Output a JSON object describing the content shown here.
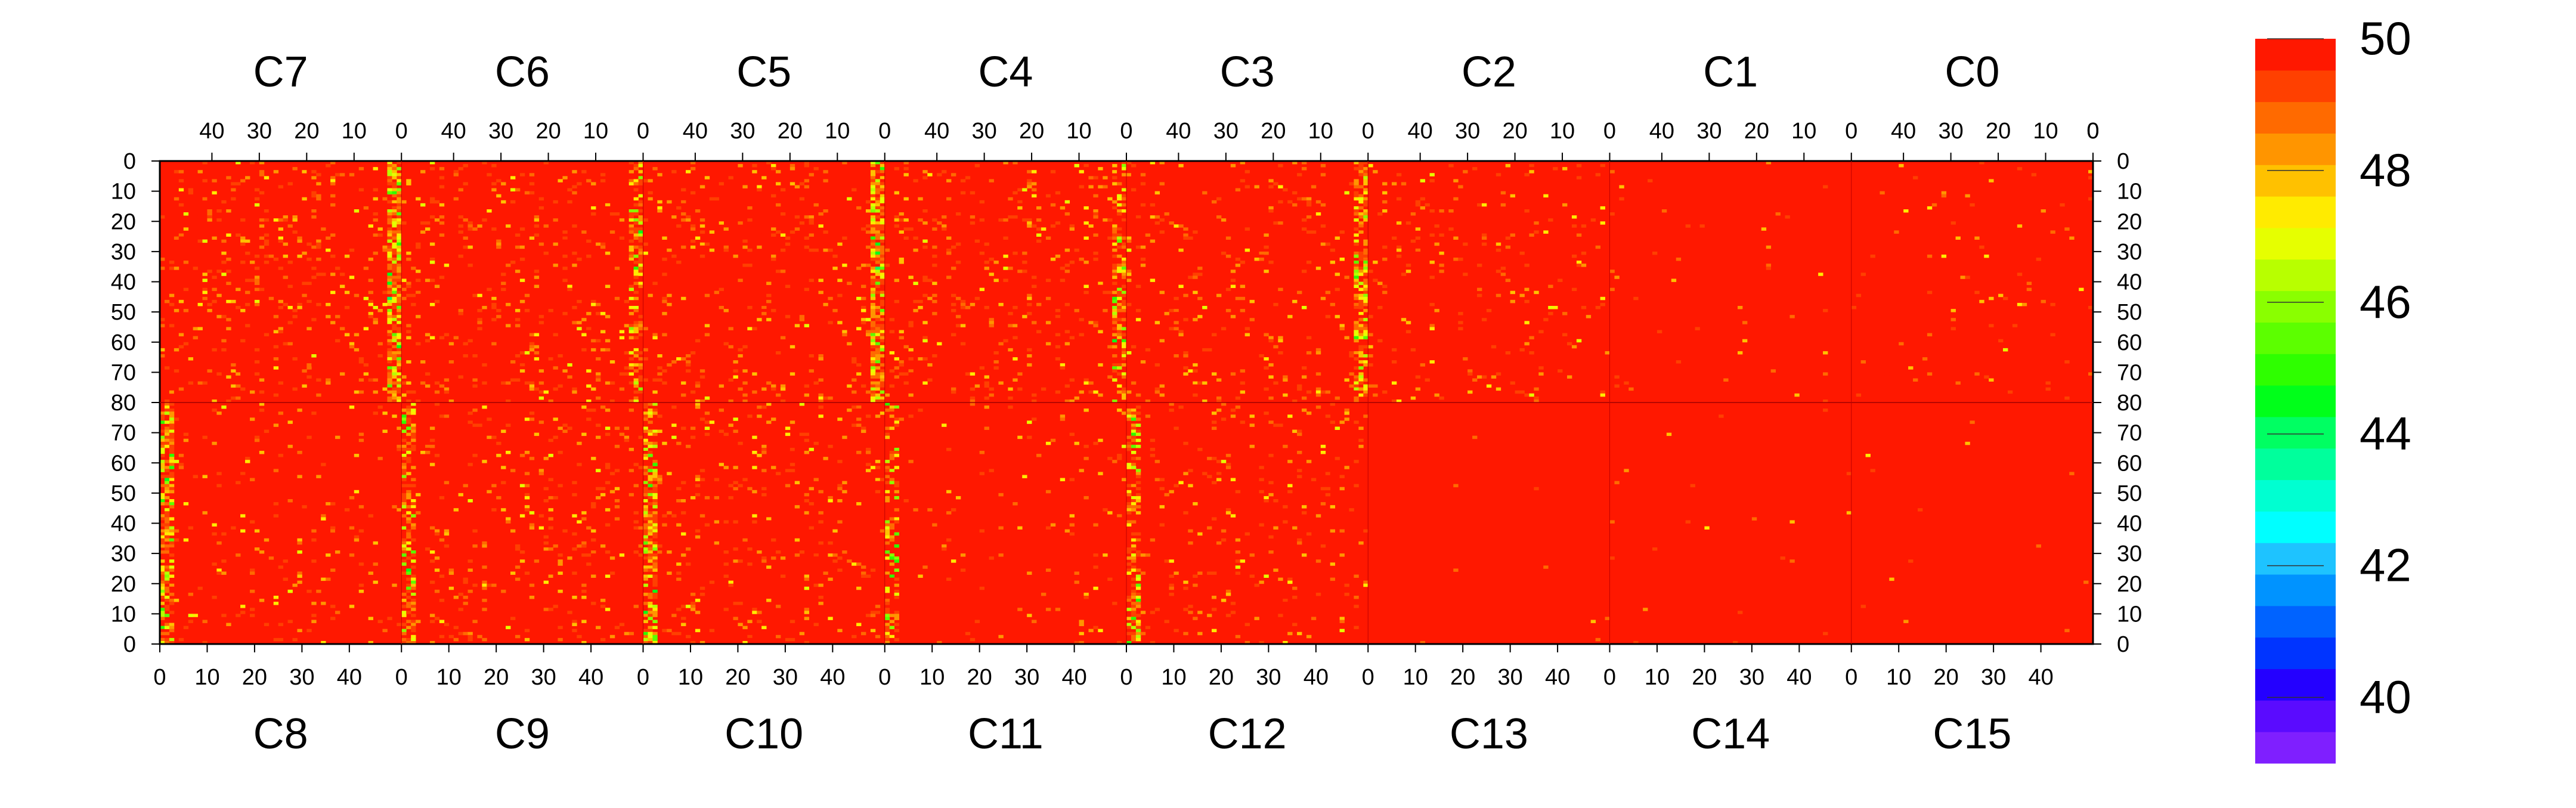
{
  "chart_data": {
    "type": "heatmap",
    "title": "",
    "top_row": {
      "channels": [
        "C7",
        "C6",
        "C5",
        "C4",
        "C3",
        "C2",
        "C1",
        "C0"
      ],
      "x_ticks": [
        "40",
        "30",
        "20",
        "10",
        "0"
      ],
      "x_tick_values": [
        40,
        30,
        20,
        10,
        0
      ],
      "x_range": [
        51,
        0
      ],
      "y_ticks": [
        "0",
        "10",
        "20",
        "30",
        "40",
        "50",
        "60",
        "70",
        "80"
      ],
      "y_range": [
        0,
        80
      ]
    },
    "bottom_row": {
      "channels": [
        "C8",
        "C9",
        "C10",
        "C11",
        "C12",
        "C13",
        "C14",
        "C15"
      ],
      "x_ticks": [
        "0",
        "10",
        "20",
        "30",
        "40"
      ],
      "x_tick_values": [
        0,
        10,
        20,
        30,
        40
      ],
      "x_range": [
        0,
        51
      ],
      "y_ticks": [
        "80",
        "70",
        "60",
        "50",
        "40",
        "30",
        "20",
        "10",
        "0"
      ],
      "y_range": [
        80,
        0
      ]
    },
    "cols_per_channel": 51,
    "rows_per_half": 80,
    "background_value": 50,
    "z_range": [
      39,
      50
    ],
    "colorbar": {
      "tick_labels": [
        "50",
        "48",
        "46",
        "44",
        "42",
        "40"
      ],
      "tick_values": [
        50,
        48,
        46,
        44,
        42,
        40
      ],
      "colors": [
        "#7f1fff",
        "#5a0bff",
        "#2400ff",
        "#0034ff",
        "#0063ff",
        "#0093ff",
        "#1ec3ff",
        "#00ffff",
        "#00ffd1",
        "#00ff9c",
        "#00ff62",
        "#00ff1a",
        "#2eff00",
        "#5cff00",
        "#8aff00",
        "#b8ff00",
        "#e6ff00",
        "#ffeb00",
        "#ffc100",
        "#ff9500",
        "#ff6a00",
        "#ff4000",
        "#ff1800"
      ]
    },
    "hot_columns": [
      {
        "half": "top",
        "channel": "C7",
        "col": 50,
        "level": 0.9
      },
      {
        "half": "top",
        "channel": "C6",
        "col": 50,
        "level": 0.5
      },
      {
        "half": "top",
        "channel": "C5",
        "col": 50,
        "level": 0.85
      },
      {
        "half": "top",
        "channel": "C4",
        "col": 50,
        "level": 0.55
      },
      {
        "half": "top",
        "channel": "C3",
        "col": 50,
        "level": 0.7
      },
      {
        "half": "bottom",
        "channel": "C8",
        "col": 50,
        "level": 0.7
      },
      {
        "half": "bottom",
        "channel": "C9",
        "col": 50,
        "level": 0.5
      },
      {
        "half": "bottom",
        "channel": "C10",
        "col": 50,
        "level": 0.7
      },
      {
        "half": "bottom",
        "channel": "C11",
        "col": 50,
        "level": 0.4
      },
      {
        "half": "bottom",
        "channel": "C12",
        "col": 50,
        "level": 0.55
      }
    ],
    "grid": false,
    "legend": "colorbar-right"
  }
}
